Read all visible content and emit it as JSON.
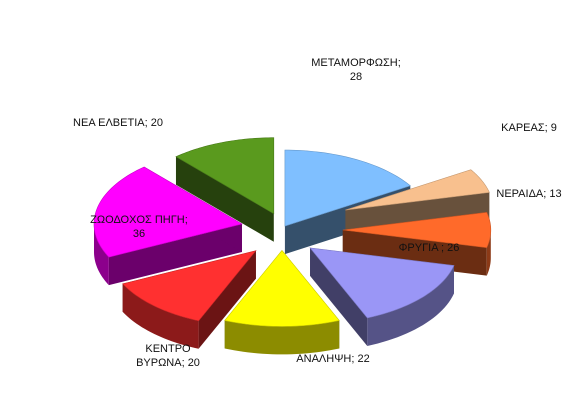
{
  "chart_data": {
    "type": "pie",
    "title": "",
    "slices": [
      {
        "label": "ΜΕΤΑΜΟΡΦΩΣΗ",
        "value": 28,
        "color": "#7FBFFF",
        "label_lines": [
          "ΜΕΤΑΜΟΡΦΩΣΗ;",
          "28"
        ]
      },
      {
        "label": "ΚΑΡΕΑΣ",
        "value": 9,
        "color": "#F8C08E",
        "label_lines": [
          "ΚΑΡΕΑΣ; 9"
        ]
      },
      {
        "label": "ΝΕΡΑΙΔΑ",
        "value": 13,
        "color": "#FF6A2A",
        "label_lines": [
          "ΝΕΡΑΙΔΑ; 13"
        ]
      },
      {
        "label": "ΦΡΥΓΙΑ",
        "value": 26,
        "color": "#9A96F6",
        "label_lines": [
          "ΦΡΥΓΙΑ  ; 26"
        ]
      },
      {
        "label": "ΑΝΑΛΗΨΗ",
        "value": 22,
        "color": "#FFFF00",
        "label_lines": [
          "ΑΝΑΛΗΨΗ; 22"
        ]
      },
      {
        "label": "ΚΕΝΤΡΟ ΒΥΡΩΝΑ",
        "value": 20,
        "color": "#FF3030",
        "label_lines": [
          "ΚΕΝΤΡΟ",
          "ΒΥΡΩΝΑ; 20"
        ]
      },
      {
        "label": "ΖΩΟΔΟΧΟΣ ΠΗΓΗ",
        "value": 36,
        "color": "#FF00FF",
        "label_lines": [
          "ΖΩΟΔΟΧΟΣ ΠΗΓΗ;",
          "36"
        ]
      },
      {
        "label": "ΝΕΑ ΕΛΒΕΤΙΑ",
        "value": 20,
        "color": "#5A9A1E",
        "label_lines": [
          "ΝΕΑ ΕΛΒΕΤΙΑ; 20"
        ]
      }
    ]
  }
}
